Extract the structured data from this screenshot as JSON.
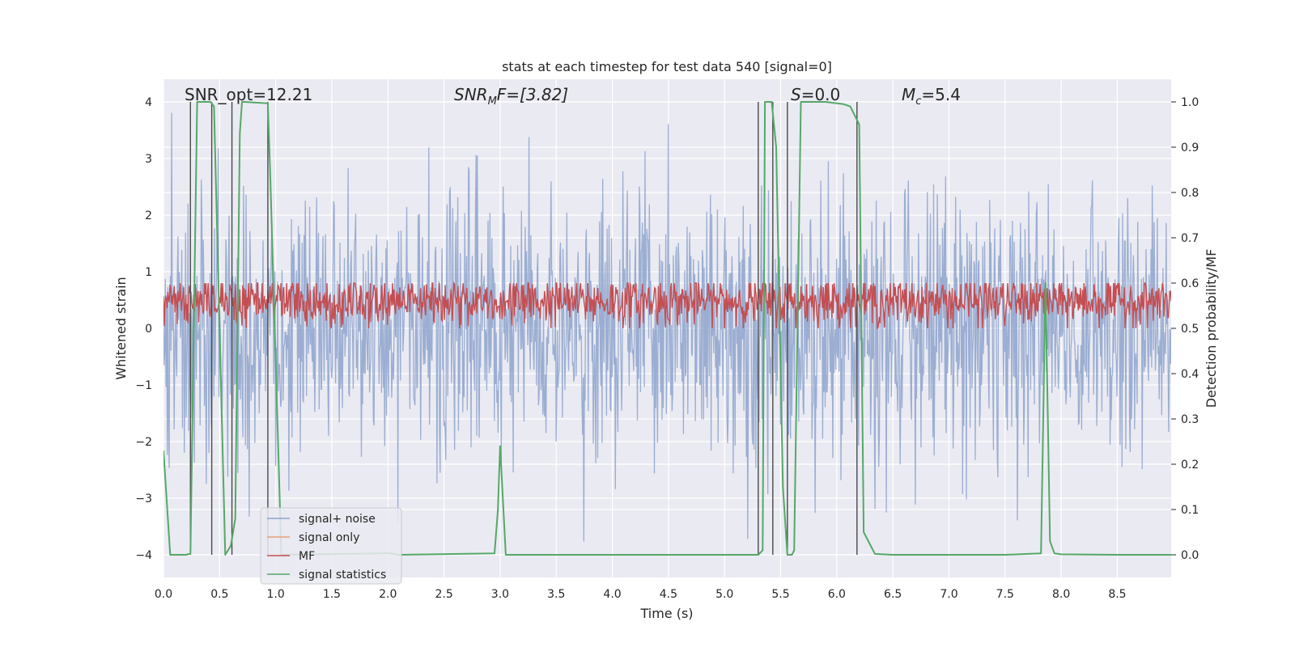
{
  "chart_data": {
    "type": "line",
    "title": "stats at each timestep for test data 540 [signal=0]",
    "xlabel": "Time (s)",
    "ylabel_left": "Whitened strain",
    "ylabel_right": "Detection probability/MF",
    "xlim": [
      0.0,
      8.98
    ],
    "ylim_left": [
      -4.4,
      4.4
    ],
    "ylim_right": [
      -0.05,
      1.05
    ],
    "x_ticks": [
      "0.0",
      "0.5",
      "1.0",
      "1.5",
      "2.0",
      "2.5",
      "3.0",
      "3.5",
      "4.0",
      "4.5",
      "5.0",
      "5.5",
      "6.0",
      "6.5",
      "7.0",
      "7.5",
      "8.0",
      "8.5"
    ],
    "y_left_ticks": [
      "4",
      "3",
      "2",
      "1",
      "0",
      "−1",
      "−2",
      "−3",
      "−4"
    ],
    "y_right_ticks": [
      "1.0",
      "0.9",
      "0.8",
      "0.7",
      "0.6",
      "0.5",
      "0.4",
      "0.3",
      "0.2",
      "0.1",
      "0.0"
    ],
    "annotations": {
      "snr_opt": "SNR_opt=12.21",
      "snr_mf_sym": "SNR",
      "snr_mf_sub": "M",
      "snr_mf_val": "F=[3.82]",
      "s_sym": "S",
      "s_val": "=0.0",
      "mc_sym": "M",
      "mc_sub": "c",
      "mc_val": "=5.4"
    },
    "legend": {
      "placement": "lower-left",
      "entries": [
        "signal+ noise",
        "signal only",
        "MF",
        "signal statistics"
      ]
    },
    "colors": {
      "noise": "#8da3cc",
      "signal_only": "#e8a07a",
      "mf": "#c44e52",
      "stats": "#55a868",
      "vlines": "#4a4a4a",
      "plot_bg": "#eaeaf2",
      "grid": "#ffffff"
    },
    "series": [
      {
        "name": "signal statistics",
        "axis": "right",
        "x": [
          0.0,
          0.06,
          0.2,
          0.24,
          0.3,
          0.42,
          0.45,
          0.55,
          0.6,
          0.64,
          0.68,
          0.7,
          0.72,
          0.93,
          0.95,
          1.05,
          1.95,
          2.0,
          2.1,
          2.95,
          2.98,
          3.0,
          3.05,
          5.3,
          5.34,
          5.36,
          5.42,
          5.46,
          5.52,
          5.56,
          5.6,
          5.62,
          5.68,
          5.9,
          6.06,
          6.12,
          6.2,
          6.24,
          6.34,
          6.5,
          7.0,
          7.5,
          7.82,
          7.86,
          7.9,
          7.94,
          8.0,
          8.5,
          8.98
        ],
        "y": [
          0.23,
          0.0,
          0.0,
          0.003,
          1.0,
          1.0,
          0.99,
          0.0,
          0.02,
          0.08,
          0.93,
          1.0,
          1.0,
          0.997,
          0.85,
          0.0,
          0.003,
          0.004,
          0.0,
          0.003,
          0.1,
          0.24,
          0.0,
          0.0,
          0.01,
          1.0,
          1.0,
          0.9,
          0.15,
          0.0,
          0.0,
          0.01,
          1.0,
          1.0,
          0.995,
          0.99,
          0.95,
          0.05,
          0.002,
          0.0,
          0.0,
          0.0,
          0.003,
          0.6,
          0.03,
          0.003,
          0.001,
          0.0,
          0.0
        ]
      },
      {
        "name": "MF",
        "axis": "right",
        "mean": 0.56,
        "spread": 0.05,
        "min": 0.5,
        "max": 0.6
      },
      {
        "name": "signal+ noise",
        "axis": "left",
        "sigma": 1.2,
        "range": [
          -4.0,
          4.0
        ]
      }
    ],
    "vlines_x": [
      0.24,
      0.43,
      0.61,
      0.93,
      5.3,
      5.43,
      5.56,
      6.18
    ],
    "vlines_range": [
      -4.0,
      4.0
    ]
  }
}
